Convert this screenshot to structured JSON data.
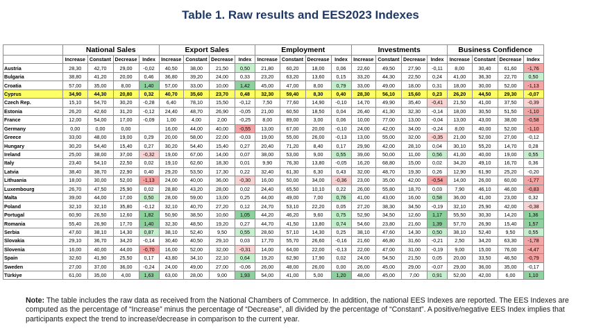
{
  "title": "Table 1. Raw results and EES2023 Indexes",
  "groups": [
    "National Sales",
    "Export Sales",
    "Employment",
    "Investments",
    "Business Confidence"
  ],
  "subheaders": [
    "Increase",
    "Constant",
    "Decrease",
    "Index"
  ],
  "rows": [
    {
      "country": "Austria",
      "v": [
        "28,30",
        "42,70",
        "29,00",
        "-0,02",
        "40,50",
        "38,00",
        "21,50",
        "0,50",
        "21,80",
        "60,20",
        "18,00",
        "0,06",
        "22,60",
        "49,50",
        "27,90",
        "-0,11",
        "8,00",
        "30,40",
        "61,60",
        "-1,76"
      ]
    },
    {
      "country": "Bulgaria",
      "v": [
        "38,80",
        "41,20",
        "20,00",
        "0,46",
        "36,80",
        "39,20",
        "24,00",
        "0,33",
        "23,20",
        "63,20",
        "13,60",
        "0,15",
        "33,20",
        "44,30",
        "22,50",
        "0,24",
        "41,00",
        "36,30",
        "22,70",
        "0,50"
      ]
    },
    {
      "country": "Croatia",
      "v": [
        "57,00",
        "35,00",
        "8,00",
        "1,40",
        "57,00",
        "33,00",
        "10,00",
        "1,42",
        "45,00",
        "47,00",
        "8,00",
        "0,79",
        "33,00",
        "49,00",
        "18,00",
        "0,31",
        "18,00",
        "30,00",
        "52,00",
        "-1,13"
      ]
    },
    {
      "country": "Cyprus",
      "v": [
        "34,90",
        "44,30",
        "20,80",
        "0,32",
        "40,70",
        "35,60",
        "23,70",
        "0,48",
        "32,30",
        "59,40",
        "8,30",
        "0,40",
        "28,30",
        "56,10",
        "15,60",
        "0,23",
        "26,20",
        "44,50",
        "29,30",
        "-0,07"
      ]
    },
    {
      "country": "Czech Rep.",
      "v": [
        "15,10",
        "54,70",
        "30,20",
        "-0,28",
        "6,40",
        "78,10",
        "15,50",
        "-0,12",
        "7,50",
        "77,60",
        "14,90",
        "-0,10",
        "14,70",
        "49,90",
        "35,40",
        "-0,41",
        "21,50",
        "41,00",
        "37,50",
        "-0,39"
      ]
    },
    {
      "country": "Estonia",
      "v": [
        "26,20",
        "42,60",
        "31,20",
        "-0,12",
        "24,40",
        "48,70",
        "26,90",
        "-0,05",
        "21,00",
        "60,50",
        "18,50",
        "0,04",
        "26,40",
        "41,30",
        "32,30",
        "-0,14",
        "18,00",
        "30,50",
        "51,50",
        "-1,10"
      ]
    },
    {
      "country": "France",
      "v": [
        "12,00",
        "54,00",
        "17,00",
        "-0,09",
        "1,00",
        "4,00",
        "2,00",
        "-0,25",
        "8,00",
        "89,00",
        "3,00",
        "0,06",
        "10,00",
        "77,00",
        "13,00",
        "-0,04",
        "13,00",
        "43,00",
        "38,00",
        "-0,58"
      ]
    },
    {
      "country": "Germany",
      "v": [
        "0,00",
        "0,00",
        "0,00",
        "",
        "16,00",
        "44,00",
        "40,00",
        "-0,55",
        "13,00",
        "67,00",
        "20,00",
        "-0,10",
        "24,00",
        "42,00",
        "34,00",
        "-0,24",
        "8,00",
        "40,00",
        "52,00",
        "-1,10"
      ]
    },
    {
      "country": "Greece",
      "v": [
        "33,00",
        "48,00",
        "19,00",
        "0,29",
        "20,00",
        "58,00",
        "22,00",
        "-0,03",
        "19,00",
        "55,00",
        "26,00",
        "-0,13",
        "13,00",
        "55,00",
        "32,00",
        "-0,35",
        "21,00",
        "52,00",
        "27,00",
        "-0,12"
      ]
    },
    {
      "country": "Hungary",
      "v": [
        "30,20",
        "54,40",
        "15,40",
        "0,27",
        "30,20",
        "54,40",
        "15,40",
        "0,27",
        "20,40",
        "71,20",
        "8,40",
        "0,17",
        "29,90",
        "42,00",
        "28,10",
        "0,04",
        "30,10",
        "55,20",
        "14,70",
        "0,28"
      ]
    },
    {
      "country": "Ireland",
      "v": [
        "25,00",
        "38,00",
        "37,00",
        "-0,32",
        "19,00",
        "67,00",
        "14,00",
        "0,07",
        "38,00",
        "53,00",
        "9,00",
        "0,55",
        "39,00",
        "50,00",
        "11,00",
        "0,56",
        "41,00",
        "40,00",
        "19,00",
        "0,55"
      ]
    },
    {
      "country": "Italy",
      "v": [
        "23,40",
        "54,10",
        "22,50",
        "0,02",
        "19,10",
        "62,60",
        "18,30",
        "0,01",
        "9,90",
        "76,30",
        "13,80",
        "-0,05",
        "16,20",
        "68,80",
        "15,00",
        "0,02",
        "34,20",
        "49,10",
        "16,70",
        "0,36"
      ]
    },
    {
      "country": "Latvia",
      "v": [
        "38,40",
        "38,70",
        "22,90",
        "0,40",
        "29,20",
        "53,50",
        "17,30",
        "0,22",
        "32,40",
        "61,30",
        "6,30",
        "0,43",
        "32,00",
        "48,70",
        "19,30",
        "0,26",
        "12,90",
        "61,90",
        "25,20",
        "-0,20"
      ]
    },
    {
      "country": "Lithuania",
      "v": [
        "18,00",
        "30,00",
        "52,00",
        "-1,13",
        "24,00",
        "40,00",
        "36,00",
        "-0,30",
        "16,00",
        "50,00",
        "34,00",
        "-0,36",
        "23,00",
        "35,00",
        "42,00",
        "-0,54",
        "14,00",
        "26,00",
        "60,00",
        "-1,77"
      ]
    },
    {
      "country": "Luxembourg",
      "v": [
        "26,70",
        "47,50",
        "25,90",
        "0,02",
        "28,80",
        "43,20",
        "28,00",
        "0,02",
        "24,40",
        "65,50",
        "10,10",
        "0,22",
        "26,00",
        "55,80",
        "18,70",
        "0,03",
        "7,90",
        "46,10",
        "46,00",
        "-0,83"
      ]
    },
    {
      "country": "Malta",
      "v": [
        "39,00",
        "44,00",
        "17,00",
        "0,50",
        "28,00",
        "59,00",
        "13,00",
        "0,25",
        "44,00",
        "49,00",
        "7,00",
        "0,76",
        "41,00",
        "43,00",
        "16,00",
        "0,58",
        "36,00",
        "41,00",
        "23,00",
        "0,32"
      ]
    },
    {
      "country": "Poland",
      "v": [
        "32,10",
        "32,10",
        "35,80",
        "-0,12",
        "32,10",
        "40,70",
        "27,20",
        "0,12",
        "24,70",
        "53,10",
        "22,20",
        "0,05",
        "27,20",
        "38,30",
        "34,50",
        "-0,19",
        "32,10",
        "25,90",
        "42,00",
        "-0,38"
      ]
    },
    {
      "country": "Portugal",
      "v": [
        "60,90",
        "26,50",
        "12,60",
        "1,82",
        "50,90",
        "38,50",
        "10,60",
        "1,05",
        "44,20",
        "46,20",
        "9,60",
        "0,75",
        "52,90",
        "34,50",
        "12,60",
        "1,17",
        "55,50",
        "30,30",
        "14,20",
        "1,36"
      ]
    },
    {
      "country": "Romania",
      "v": [
        "55,40",
        "26,90",
        "17,70",
        "1,40",
        "32,30",
        "48,50",
        "19,20",
        "0,27",
        "44,70",
        "41,50",
        "13,80",
        "0,74",
        "54,60",
        "23,80",
        "21,60",
        "1,39",
        "57,70",
        "26,90",
        "15,40",
        "1,57"
      ]
    },
    {
      "country": "Serbia",
      "v": [
        "47,60",
        "38,10",
        "14,30",
        "0,87",
        "38,10",
        "52,40",
        "9,50",
        "0,55",
        "28,60",
        "57,10",
        "14,30",
        "0,25",
        "38,10",
        "47,60",
        "14,30",
        "0,50",
        "38,10",
        "52,40",
        "9,50",
        "0,55"
      ]
    },
    {
      "country": "Slovakia",
      "v": [
        "29,10",
        "36,70",
        "34,20",
        "-0,14",
        "30,40",
        "40,50",
        "29,10",
        "0,03",
        "17,70",
        "55,70",
        "26,60",
        "-0,16",
        "21,60",
        "46,80",
        "31,60",
        "-0,21",
        "2,50",
        "34,20",
        "63,30",
        "-1,78"
      ]
    },
    {
      "country": "Slovenia",
      "v": [
        "16,00",
        "40,00",
        "44,00",
        "-0,70",
        "16,00",
        "52,00",
        "32,00",
        "-0,31",
        "14,00",
        "64,00",
        "22,00",
        "-0,13",
        "22,00",
        "47,00",
        "31,00",
        "-0,19",
        "9,00",
        "15,00",
        "76,00",
        "-4,47"
      ]
    },
    {
      "country": "Spain",
      "v": [
        "32,60",
        "41,90",
        "25,50",
        "0,17",
        "43,80",
        "34,10",
        "22,10",
        "0,64",
        "19,20",
        "62,90",
        "17,90",
        "0,02",
        "24,00",
        "54,50",
        "21,50",
        "0,05",
        "20,00",
        "33,50",
        "46,50",
        "-0,79"
      ]
    },
    {
      "country": "Sweden",
      "v": [
        "27,00",
        "37,00",
        "36,00",
        "-0,24",
        "24,00",
        "49,00",
        "27,00",
        "-0,06",
        "26,00",
        "48,00",
        "26,00",
        "0,00",
        "26,00",
        "45,00",
        "29,00",
        "-0,07",
        "29,00",
        "36,00",
        "35,00",
        "-0,17"
      ]
    },
    {
      "country": "Türkiye",
      "v": [
        "61,00",
        "35,00",
        "4,00",
        "1,63",
        "63,00",
        "28,00",
        "9,00",
        "1,93",
        "54,00",
        "41,00",
        "5,00",
        "1,20",
        "48,00",
        "45,00",
        "7,00",
        "0,91",
        "52,00",
        "42,00",
        "6,00",
        "1,10"
      ]
    }
  ],
  "highlight_row": "Cyprus",
  "note": {
    "label": "Note:",
    "text": " The table includes the raw data as received from the National Chambers of Commerce. In addition, the national EES Indexes are reported. The EES Indexes are computed as the percentage of “Increase” minus the percentage of “Decrease”, all divided by the percentage of “Constant”. A positive/negative EES Index implies that participants expect the trend to increase/decrease in comparison to the current year."
  },
  "colors": {
    "title": "#1f3864",
    "strong_positive": "#8fd19e",
    "light_positive": "#c6efce",
    "strong_negative": "#f4a6a6",
    "light_negative": "#f9d4d4",
    "highlight": "#ffff66"
  }
}
